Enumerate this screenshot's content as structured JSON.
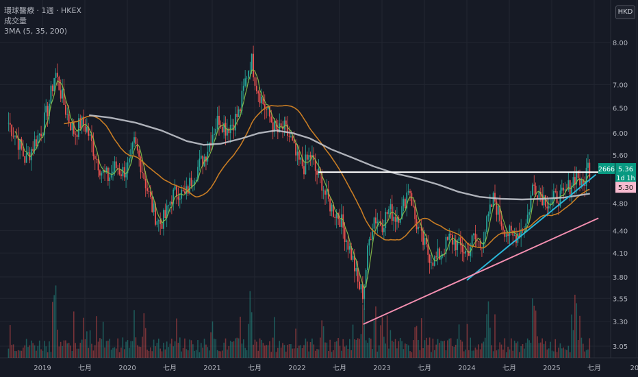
{
  "legend": {
    "title": "環球醫療 · 1週 · HKEX",
    "volume": "成交量",
    "ma": "3MA (5, 35, 200)"
  },
  "currency_button": "HKD",
  "colors": {
    "background": "#161a25",
    "grid": "#222631",
    "up": "#26a69a",
    "down": "#ef5350",
    "ma5": "#8bc34a",
    "ma35": "#c77c24",
    "ma200": "#c9ccd3",
    "trend_cyan": "#29b6d8",
    "trend_pink": "#f48fb1",
    "resistance": "#ffffff",
    "label_price": "#089981",
    "label_pink": "#f8bbd0"
  },
  "chart_data": {
    "type": "candlestick",
    "scale": "log",
    "y_ticks": [
      8.0,
      7.0,
      6.5,
      6.0,
      5.6,
      4.8,
      4.4,
      4.1,
      3.8,
      3.55,
      3.3,
      3.05
    ],
    "x_ticks": [
      {
        "label": "2019",
        "t": 2019.0
      },
      {
        "label": "七月",
        "t": 2019.5
      },
      {
        "label": "2020",
        "t": 2020.0
      },
      {
        "label": "七月",
        "t": 2020.5
      },
      {
        "label": "2021",
        "t": 2021.0
      },
      {
        "label": "七月",
        "t": 2021.5
      },
      {
        "label": "2022",
        "t": 2022.0
      },
      {
        "label": "七月",
        "t": 2022.5
      },
      {
        "label": "2023",
        "t": 2023.0
      },
      {
        "label": "七月",
        "t": 2023.5
      },
      {
        "label": "2024",
        "t": 2024.0
      },
      {
        "label": "七月",
        "t": 2024.5
      },
      {
        "label": "2025",
        "t": 2025.0
      },
      {
        "label": "七月",
        "t": 2025.5
      },
      {
        "label": "202",
        "t": 2026.0
      }
    ],
    "close_path": [
      [
        2018.6,
        6.2
      ],
      [
        2018.7,
        5.9
      ],
      [
        2018.8,
        5.5
      ],
      [
        2018.9,
        5.8
      ],
      [
        2019.0,
        6.1
      ],
      [
        2019.08,
        6.6
      ],
      [
        2019.15,
        7.3
      ],
      [
        2019.22,
        6.8
      ],
      [
        2019.3,
        6.3
      ],
      [
        2019.38,
        6.0
      ],
      [
        2019.45,
        6.2
      ],
      [
        2019.52,
        6.1
      ],
      [
        2019.6,
        5.7
      ],
      [
        2019.7,
        5.3
      ],
      [
        2019.78,
        5.2
      ],
      [
        2019.86,
        5.4
      ],
      [
        2019.94,
        5.3
      ],
      [
        2020.02,
        5.4
      ],
      [
        2020.08,
        5.8
      ],
      [
        2020.15,
        5.5
      ],
      [
        2020.22,
        5.1
      ],
      [
        2020.3,
        4.7
      ],
      [
        2020.38,
        4.5
      ],
      [
        2020.45,
        4.6
      ],
      [
        2020.52,
        4.9
      ],
      [
        2020.6,
        5.0
      ],
      [
        2020.68,
        4.9
      ],
      [
        2020.76,
        5.2
      ],
      [
        2020.84,
        5.4
      ],
      [
        2020.92,
        5.6
      ],
      [
        2021.0,
        6.0
      ],
      [
        2021.08,
        6.3
      ],
      [
        2021.16,
        6.1
      ],
      [
        2021.24,
        6.2
      ],
      [
        2021.32,
        6.4
      ],
      [
        2021.4,
        7.2
      ],
      [
        2021.46,
        7.6
      ],
      [
        2021.52,
        7.0
      ],
      [
        2021.6,
        6.6
      ],
      [
        2021.68,
        6.3
      ],
      [
        2021.76,
        6.0
      ],
      [
        2021.84,
        6.1
      ],
      [
        2021.92,
        5.9
      ],
      [
        2022.0,
        5.5
      ],
      [
        2022.08,
        5.4
      ],
      [
        2022.16,
        5.6
      ],
      [
        2022.22,
        5.3
      ],
      [
        2022.28,
        5.2
      ],
      [
        2022.34,
        4.9
      ],
      [
        2022.42,
        4.7
      ],
      [
        2022.5,
        4.6
      ],
      [
        2022.58,
        4.3
      ],
      [
        2022.66,
        4.0
      ],
      [
        2022.72,
        3.7
      ],
      [
        2022.78,
        3.6
      ],
      [
        2022.84,
        4.2
      ],
      [
        2022.9,
        4.6
      ],
      [
        2023.0,
        4.5
      ],
      [
        2023.08,
        4.7
      ],
      [
        2023.16,
        4.6
      ],
      [
        2023.24,
        4.7
      ],
      [
        2023.32,
        5.1
      ],
      [
        2023.38,
        4.6
      ],
      [
        2023.46,
        4.3
      ],
      [
        2023.54,
        4.1
      ],
      [
        2023.62,
        4.0
      ],
      [
        2023.7,
        4.1
      ],
      [
        2023.8,
        4.3
      ],
      [
        2023.9,
        4.2
      ],
      [
        2024.0,
        4.1
      ],
      [
        2024.08,
        4.3
      ],
      [
        2024.16,
        4.2
      ],
      [
        2024.26,
        4.6
      ],
      [
        2024.32,
        4.9
      ],
      [
        2024.38,
        4.6
      ],
      [
        2024.46,
        4.4
      ],
      [
        2024.54,
        4.3
      ],
      [
        2024.62,
        4.4
      ],
      [
        2024.7,
        4.5
      ],
      [
        2024.78,
        5.1
      ],
      [
        2024.84,
        5.0
      ],
      [
        2024.9,
        4.9
      ],
      [
        2024.98,
        4.8
      ],
      [
        2025.06,
        4.9
      ],
      [
        2025.14,
        4.9
      ],
      [
        2025.22,
        5.1
      ],
      [
        2025.3,
        5.3
      ],
      [
        2025.36,
        5.0
      ],
      [
        2025.42,
        5.4
      ],
      [
        2025.46,
        5.36
      ]
    ],
    "ma200_path": [
      [
        2019.55,
        6.35
      ],
      [
        2019.8,
        6.3
      ],
      [
        2020.1,
        6.2
      ],
      [
        2020.4,
        6.05
      ],
      [
        2020.7,
        5.85
      ],
      [
        2020.9,
        5.78
      ],
      [
        2021.1,
        5.8
      ],
      [
        2021.35,
        5.9
      ],
      [
        2021.55,
        6.0
      ],
      [
        2021.75,
        6.05
      ],
      [
        2021.95,
        6.0
      ],
      [
        2022.15,
        5.9
      ],
      [
        2022.4,
        5.7
      ],
      [
        2022.65,
        5.55
      ],
      [
        2022.9,
        5.4
      ],
      [
        2023.15,
        5.28
      ],
      [
        2023.4,
        5.2
      ],
      [
        2023.65,
        5.1
      ],
      [
        2023.9,
        4.98
      ],
      [
        2024.15,
        4.9
      ],
      [
        2024.4,
        4.87
      ],
      [
        2024.65,
        4.86
      ],
      [
        2024.9,
        4.87
      ],
      [
        2025.15,
        4.89
      ],
      [
        2025.3,
        4.92
      ],
      [
        2025.45,
        4.95
      ]
    ],
    "resistance_level": 5.3,
    "resistance_from": 2022.25,
    "trendline_cyan": {
      "from": [
        2024.0,
        3.76
      ],
      "to": [
        2025.52,
        5.26
      ]
    },
    "trendline_pink": {
      "from": [
        2022.78,
        3.27
      ],
      "to": [
        2025.55,
        4.58
      ]
    },
    "volume_peaks": [
      [
        2019.15,
        0.95
      ],
      [
        2020.2,
        0.55
      ],
      [
        2021.0,
        0.45
      ],
      [
        2021.45,
        0.8
      ],
      [
        2022.3,
        0.5
      ],
      [
        2022.78,
        0.75
      ],
      [
        2023.0,
        0.5
      ],
      [
        2023.4,
        0.45
      ],
      [
        2024.25,
        0.7
      ],
      [
        2024.8,
        0.75
      ],
      [
        2025.28,
        0.85
      ]
    ],
    "price_labels": [
      {
        "text": "5.36",
        "sub": "1d 1h",
        "price": 5.36,
        "kind": "price"
      },
      {
        "text": "5.30",
        "price": 5.3,
        "kind": "pink"
      }
    ],
    "badge_left": "2666"
  }
}
